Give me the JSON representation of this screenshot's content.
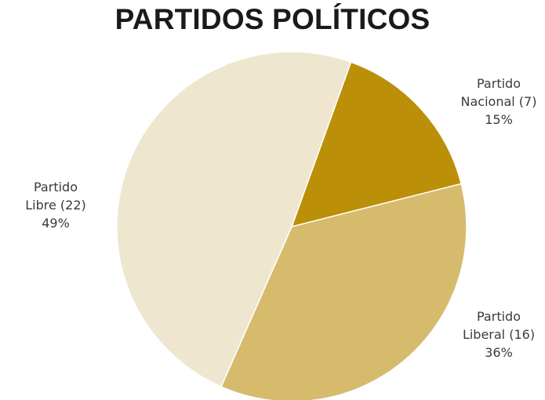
{
  "chart_data": {
    "type": "pie",
    "title": "PARTIDOS POLÍTICOS",
    "slices": [
      {
        "name": "Partido",
        "name2": "Nacional (7)",
        "percent_label": "15%",
        "value": 7,
        "percent": 15,
        "color": "#bb8f08"
      },
      {
        "name": "Partido",
        "name2": "Liberal (16)",
        "percent_label": "36%",
        "value": 16,
        "percent": 36,
        "color": "#d6bb6c"
      },
      {
        "name": "Partido",
        "name2": "Libre (22)",
        "percent_label": "49%",
        "value": 22,
        "percent": 49,
        "color": "#efe6d0"
      }
    ],
    "legend": "none"
  }
}
